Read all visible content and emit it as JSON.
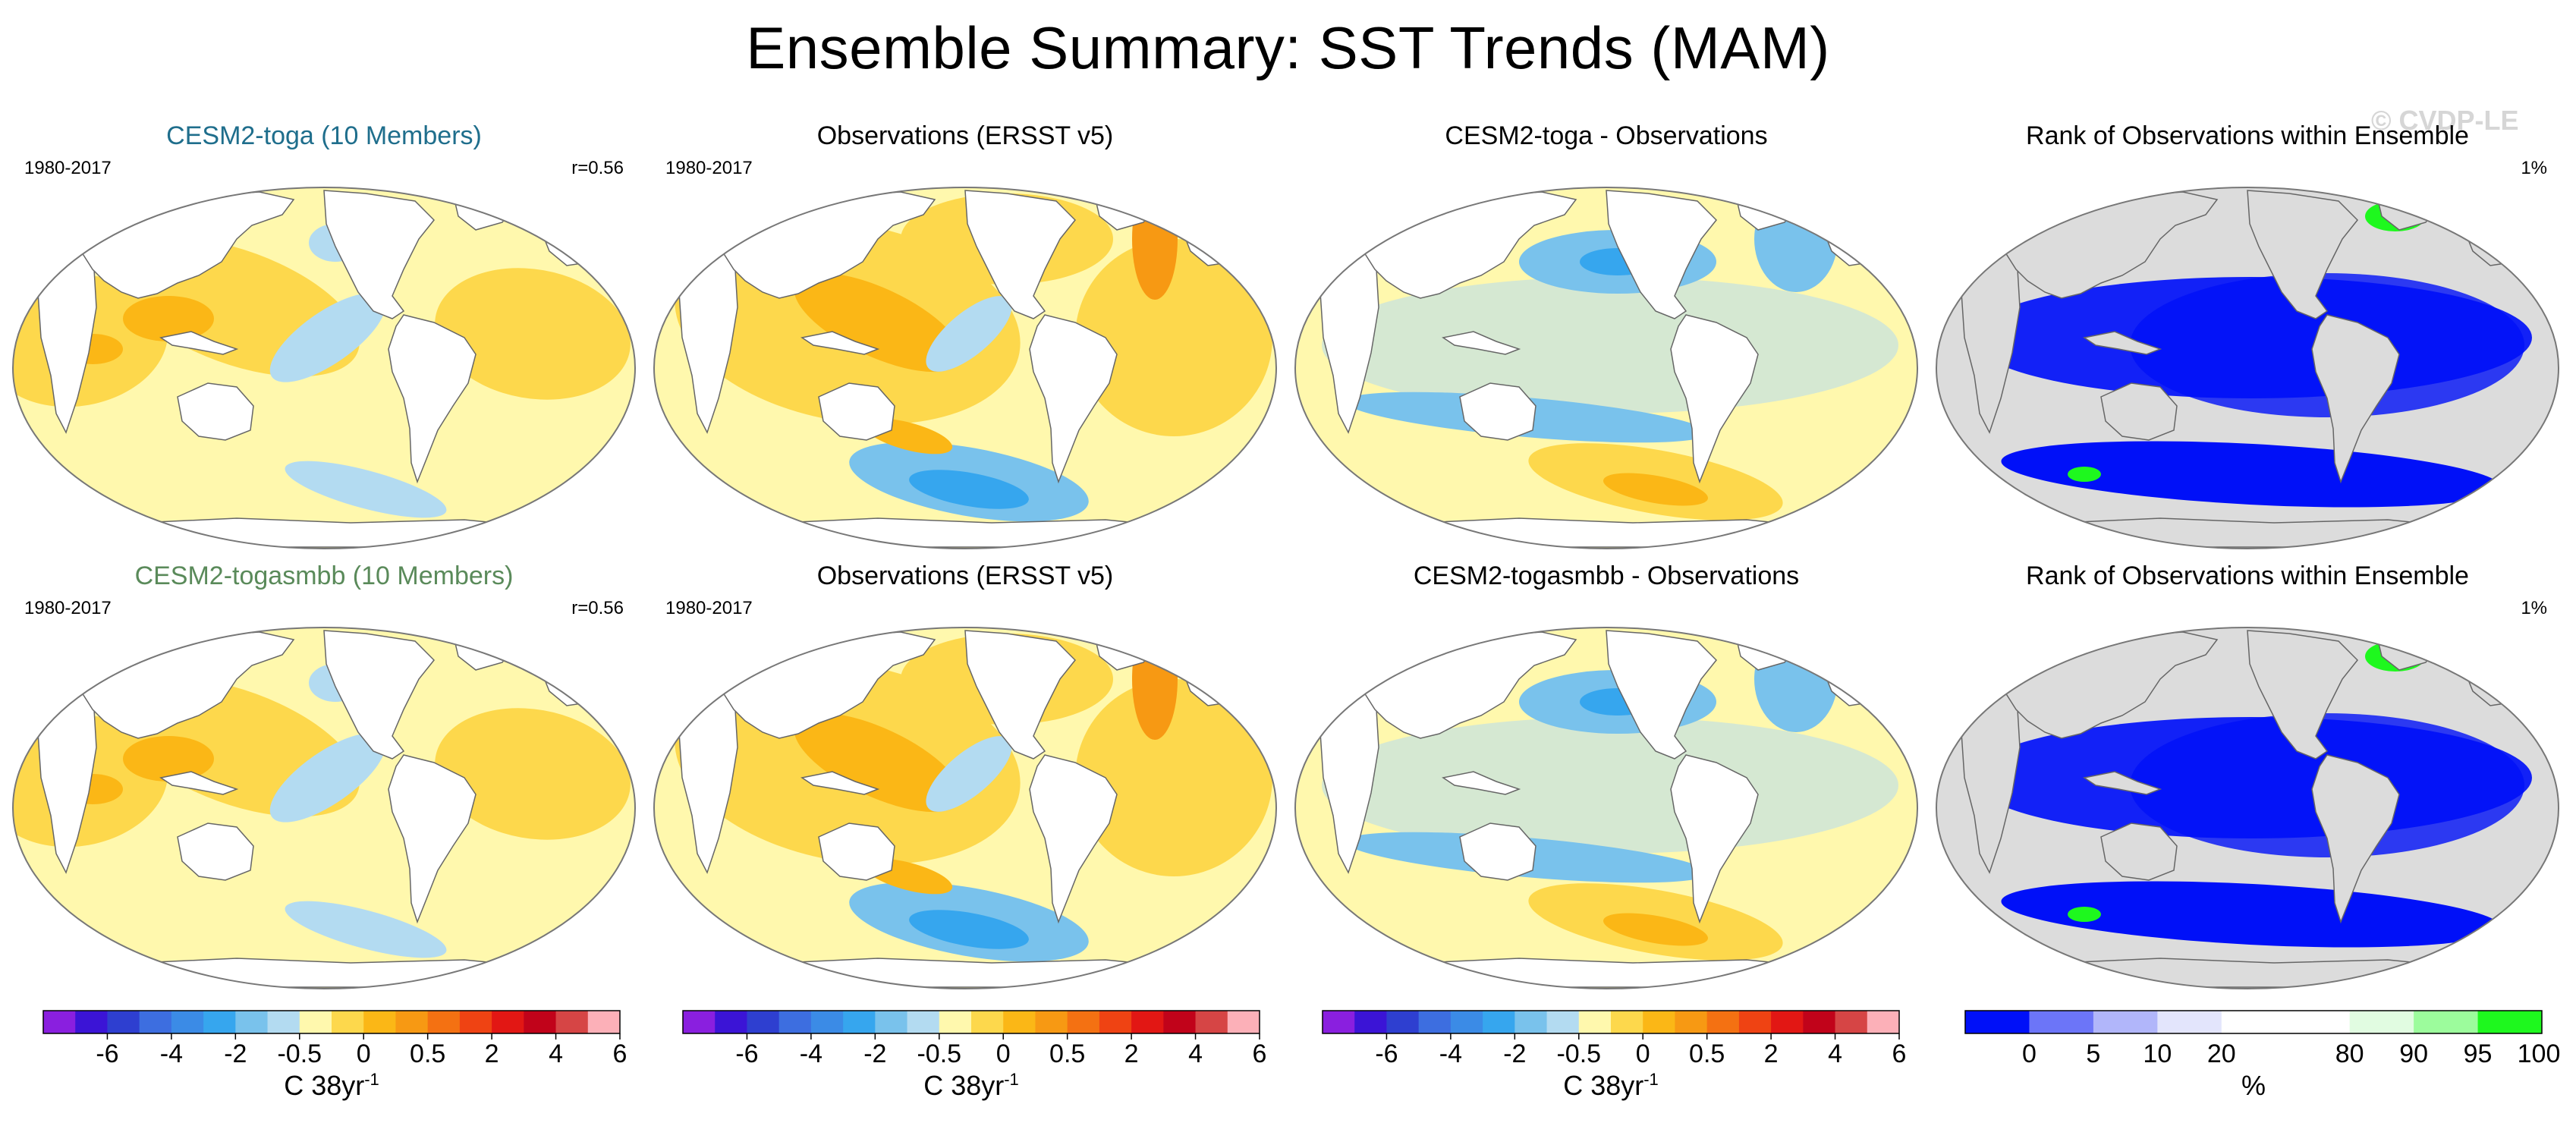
{
  "title": "Ensemble Summary: SST Trends (MAM)",
  "watermark": "© CVDP-LE",
  "rows": [
    {
      "model_title": "CESM2-toga (10 Members)",
      "model_title_color": "#1f6e8c",
      "period": "1980-2017",
      "correlation": "r=0.56",
      "obs_title": "Observations (ERSST v5)",
      "diff_title": "CESM2-toga - Observations",
      "rank_title": "Rank of Observations within Ensemble",
      "rank_percent": "1%"
    },
    {
      "model_title": "CESM2-togasmbb (10 Members)",
      "model_title_color": "#5a8a5a",
      "period": "1980-2017",
      "correlation": "r=0.56",
      "obs_title": "Observations (ERSST v5)",
      "diff_title": "CESM2-togasmbb - Observations",
      "rank_title": "Rank of Observations within Ensemble",
      "rank_percent": "1%"
    }
  ],
  "chart_data": {
    "type": "heatmap",
    "variable": "SST trend",
    "units_label": "C 38yr",
    "units_exponent": "-1",
    "trend_colorbar": {
      "colors": [
        "#8a1fdf",
        "#3b14d6",
        "#2e3fd0",
        "#3d6ee0",
        "#3b8be6",
        "#36a6ee",
        "#79c2ec",
        "#b3dbf1",
        "#fff8ad",
        "#fdd84c",
        "#fbb716",
        "#f79913",
        "#f47112",
        "#ef4313",
        "#e21714",
        "#c1031a",
        "#d64545",
        "#fcb0b8"
      ],
      "tick_labels": [
        "-6",
        "-4",
        "-2",
        "-0.5",
        "0",
        "0.5",
        "2",
        "4",
        "6"
      ]
    },
    "rank_colorbar": {
      "colors": [
        "#0010f8",
        "#6c75f8",
        "#b1b6fa",
        "#e3e5fc",
        "#ffffff",
        "#ffffff",
        "#e1fce1",
        "#9cfc9c",
        "#1ef81e"
      ],
      "tick_labels": [
        "0",
        "5",
        "10",
        "20",
        "80",
        "90",
        "95",
        "100"
      ],
      "label": "%"
    }
  }
}
